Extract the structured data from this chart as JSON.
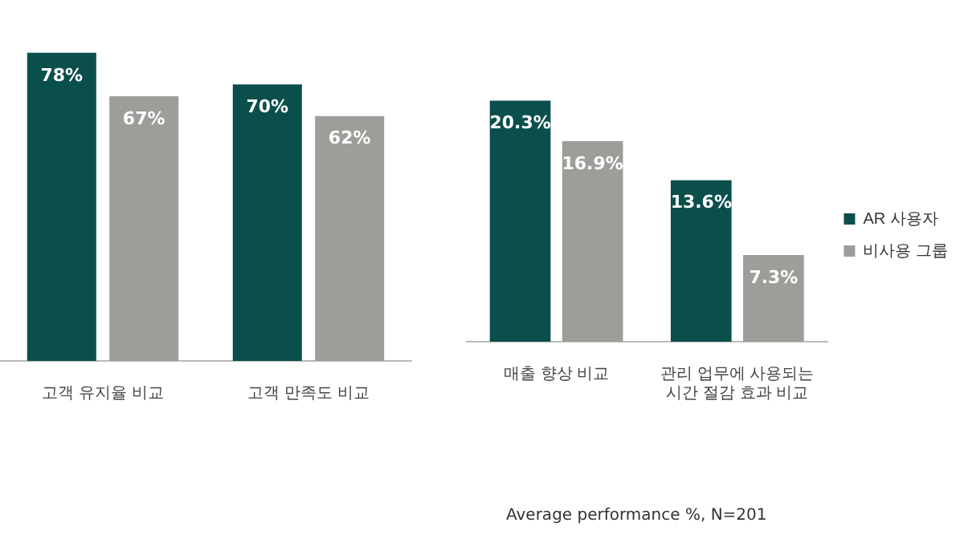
{
  "chart_data": [
    {
      "type": "bar",
      "categories": [
        "고객 유지율 비교",
        "고객 만족도 비교"
      ],
      "legend": false,
      "series": [
        {
          "color": "#0b4f4c",
          "values": [
            78,
            70
          ],
          "value_labels": [
            "78%",
            "70%"
          ]
        },
        {
          "color": "#9b9e99",
          "values": [
            67,
            62
          ],
          "value_labels": [
            "67%",
            "62%"
          ]
        }
      ]
    },
    {
      "type": "bar",
      "categories": [
        "매출 향상 비교",
        "관리 업무에 사용되는\n시간 절감 효과 비교"
      ],
      "legend": "right",
      "annotations": [
        "Average performance %, N=201"
      ],
      "series": [
        {
          "name": "AR 사용자",
          "color": "#0b4f4c",
          "values": [
            20.3,
            13.6
          ],
          "value_labels": [
            "20.3%",
            "13.6%"
          ]
        },
        {
          "name": "비사용 그룹",
          "color": "#9b9e99",
          "values": [
            16.9,
            7.3
          ],
          "value_labels": [
            "16.9%",
            "7.3%"
          ]
        }
      ]
    }
  ]
}
